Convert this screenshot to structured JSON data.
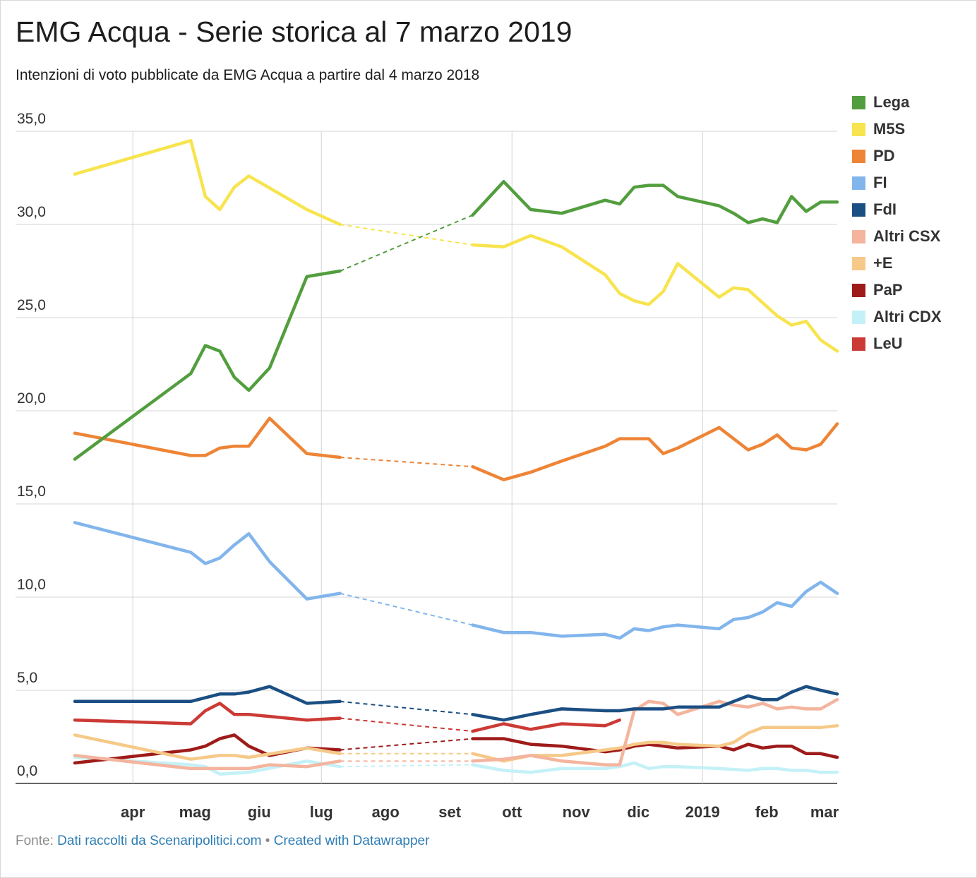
{
  "header": {
    "title": "EMG Acqua - Serie storica al 7 marzo 2019",
    "subtitle": "Intenzioni di voto pubblicate da EMG Acqua a partire dal 4 marzo 2018"
  },
  "footer": {
    "prefix": "Fonte:",
    "source": "Dati raccolti da Scenaripolitici.com",
    "separator": "•",
    "credit": "Created with Datawrapper"
  },
  "chart_data": {
    "type": "line",
    "title": "EMG Acqua - Serie storica al 7 marzo 2019",
    "subtitle": "Intenzioni di voto pubblicate da EMG Acqua a partire dal 4 marzo 2018",
    "xlabel": "",
    "ylabel": "",
    "x_unit": "date",
    "x_range": [
      "2018-03-04",
      "2019-03-07"
    ],
    "ylim": [
      0,
      35
    ],
    "y_ticks": [
      0,
      5,
      10,
      15,
      20,
      25,
      30,
      35
    ],
    "y_tick_labels": [
      "0,0",
      "5,0",
      "10,0",
      "15,0",
      "20,0",
      "25,0",
      "30,0",
      "35,0"
    ],
    "x_ticks": [
      "2018-04-01",
      "2018-05-01",
      "2018-06-01",
      "2018-07-01",
      "2018-08-01",
      "2018-09-01",
      "2018-10-01",
      "2018-11-01",
      "2018-12-01",
      "2019-01-01",
      "2019-02-01",
      "2019-03-01"
    ],
    "x_tick_labels": [
      "apr",
      "mag",
      "giu",
      "lug",
      "ago",
      "set",
      "ott",
      "nov",
      "dic",
      "2019",
      "feb",
      "mar"
    ],
    "x_gridlines": [
      "2018-04-01",
      "2018-07-01",
      "2018-10-01",
      "2019-01-01"
    ],
    "gap": {
      "from": "2018-07-10",
      "to": "2018-09-12",
      "style": "dashed"
    },
    "legend_position": "right",
    "grid": true,
    "series": [
      {
        "name": "Lega",
        "color": "#529e3e",
        "points": [
          [
            "2018-03-04",
            17.4
          ],
          [
            "2018-04-29",
            22.0
          ],
          [
            "2018-05-06",
            23.5
          ],
          [
            "2018-05-13",
            23.2
          ],
          [
            "2018-05-20",
            21.8
          ],
          [
            "2018-05-27",
            21.1
          ],
          [
            "2018-06-06",
            22.3
          ],
          [
            "2018-06-24",
            27.2
          ],
          [
            "2018-07-10",
            27.5
          ],
          [
            "2018-09-12",
            30.5
          ],
          [
            "2018-09-27",
            32.3
          ],
          [
            "2018-10-10",
            30.8
          ],
          [
            "2018-10-25",
            30.6
          ],
          [
            "2018-11-15",
            31.3
          ],
          [
            "2018-11-22",
            31.1
          ],
          [
            "2018-11-29",
            32.0
          ],
          [
            "2018-12-06",
            32.1
          ],
          [
            "2018-12-13",
            32.1
          ],
          [
            "2018-12-20",
            31.5
          ],
          [
            "2019-01-09",
            31.0
          ],
          [
            "2019-01-16",
            30.6
          ],
          [
            "2019-01-23",
            30.1
          ],
          [
            "2019-01-30",
            30.3
          ],
          [
            "2019-02-06",
            30.1
          ],
          [
            "2019-02-13",
            31.5
          ],
          [
            "2019-02-20",
            30.7
          ],
          [
            "2019-02-27",
            31.2
          ],
          [
            "2019-03-07",
            31.2
          ]
        ]
      },
      {
        "name": "M5S",
        "color": "#f7e44e",
        "points": [
          [
            "2018-03-04",
            32.7
          ],
          [
            "2018-04-29",
            34.5
          ],
          [
            "2018-05-06",
            31.5
          ],
          [
            "2018-05-13",
            30.8
          ],
          [
            "2018-05-20",
            32.0
          ],
          [
            "2018-05-27",
            32.6
          ],
          [
            "2018-06-24",
            30.8
          ],
          [
            "2018-07-10",
            30.0
          ],
          [
            "2018-09-12",
            28.9
          ],
          [
            "2018-09-27",
            28.8
          ],
          [
            "2018-10-10",
            29.4
          ],
          [
            "2018-10-25",
            28.8
          ],
          [
            "2018-11-15",
            27.3
          ],
          [
            "2018-11-22",
            26.3
          ],
          [
            "2018-11-29",
            25.9
          ],
          [
            "2018-12-06",
            25.7
          ],
          [
            "2018-12-13",
            26.4
          ],
          [
            "2018-12-20",
            27.9
          ],
          [
            "2019-01-09",
            26.1
          ],
          [
            "2019-01-16",
            26.6
          ],
          [
            "2019-01-23",
            26.5
          ],
          [
            "2019-01-30",
            25.8
          ],
          [
            "2019-02-06",
            25.1
          ],
          [
            "2019-02-13",
            24.6
          ],
          [
            "2019-02-20",
            24.8
          ],
          [
            "2019-02-27",
            23.8
          ],
          [
            "2019-03-07",
            23.2
          ]
        ]
      },
      {
        "name": "PD",
        "color": "#ee8436",
        "points": [
          [
            "2018-03-04",
            18.8
          ],
          [
            "2018-04-29",
            17.6
          ],
          [
            "2018-05-06",
            17.6
          ],
          [
            "2018-05-13",
            18.0
          ],
          [
            "2018-05-20",
            18.1
          ],
          [
            "2018-05-27",
            18.1
          ],
          [
            "2018-06-06",
            19.6
          ],
          [
            "2018-06-24",
            17.7
          ],
          [
            "2018-07-10",
            17.5
          ],
          [
            "2018-09-12",
            17.0
          ],
          [
            "2018-09-27",
            16.3
          ],
          [
            "2018-10-10",
            16.7
          ],
          [
            "2018-10-25",
            17.3
          ],
          [
            "2018-11-15",
            18.1
          ],
          [
            "2018-11-22",
            18.5
          ],
          [
            "2018-11-29",
            18.5
          ],
          [
            "2018-12-06",
            18.5
          ],
          [
            "2018-12-13",
            17.7
          ],
          [
            "2018-12-20",
            18.0
          ],
          [
            "2019-01-09",
            19.1
          ],
          [
            "2019-01-16",
            18.5
          ],
          [
            "2019-01-23",
            17.9
          ],
          [
            "2019-01-30",
            18.2
          ],
          [
            "2019-02-06",
            18.7
          ],
          [
            "2019-02-13",
            18.0
          ],
          [
            "2019-02-20",
            17.9
          ],
          [
            "2019-02-27",
            18.2
          ],
          [
            "2019-03-07",
            19.3
          ]
        ]
      },
      {
        "name": "FI",
        "color": "#82b5ec",
        "points": [
          [
            "2018-03-04",
            14.0
          ],
          [
            "2018-04-29",
            12.4
          ],
          [
            "2018-05-06",
            11.8
          ],
          [
            "2018-05-13",
            12.1
          ],
          [
            "2018-05-20",
            12.8
          ],
          [
            "2018-05-27",
            13.4
          ],
          [
            "2018-06-06",
            11.9
          ],
          [
            "2018-06-24",
            9.9
          ],
          [
            "2018-07-10",
            10.2
          ],
          [
            "2018-09-12",
            8.5
          ],
          [
            "2018-09-27",
            8.1
          ],
          [
            "2018-10-10",
            8.1
          ],
          [
            "2018-10-25",
            7.9
          ],
          [
            "2018-11-15",
            8.0
          ],
          [
            "2018-11-22",
            7.8
          ],
          [
            "2018-11-29",
            8.3
          ],
          [
            "2018-12-06",
            8.2
          ],
          [
            "2018-12-13",
            8.4
          ],
          [
            "2018-12-20",
            8.5
          ],
          [
            "2019-01-09",
            8.3
          ],
          [
            "2019-01-16",
            8.8
          ],
          [
            "2019-01-23",
            8.9
          ],
          [
            "2019-01-30",
            9.2
          ],
          [
            "2019-02-06",
            9.7
          ],
          [
            "2019-02-13",
            9.5
          ],
          [
            "2019-02-20",
            10.3
          ],
          [
            "2019-02-27",
            10.8
          ],
          [
            "2019-03-07",
            10.2
          ]
        ]
      },
      {
        "name": "FdI",
        "color": "#1b4f83",
        "points": [
          [
            "2018-03-04",
            4.4
          ],
          [
            "2018-04-29",
            4.4
          ],
          [
            "2018-05-13",
            4.8
          ],
          [
            "2018-05-20",
            4.8
          ],
          [
            "2018-05-27",
            4.9
          ],
          [
            "2018-06-06",
            5.2
          ],
          [
            "2018-06-24",
            4.3
          ],
          [
            "2018-07-10",
            4.4
          ],
          [
            "2018-09-12",
            3.7
          ],
          [
            "2018-09-27",
            3.4
          ],
          [
            "2018-10-10",
            3.7
          ],
          [
            "2018-10-25",
            4.0
          ],
          [
            "2018-11-15",
            3.9
          ],
          [
            "2018-11-22",
            3.9
          ],
          [
            "2018-11-29",
            4.0
          ],
          [
            "2018-12-06",
            4.0
          ],
          [
            "2018-12-13",
            4.0
          ],
          [
            "2018-12-20",
            4.1
          ],
          [
            "2019-01-09",
            4.1
          ],
          [
            "2019-01-16",
            4.4
          ],
          [
            "2019-01-23",
            4.7
          ],
          [
            "2019-01-30",
            4.5
          ],
          [
            "2019-02-06",
            4.5
          ],
          [
            "2019-02-13",
            4.9
          ],
          [
            "2019-02-20",
            5.2
          ],
          [
            "2019-02-27",
            5.0
          ],
          [
            "2019-03-07",
            4.8
          ]
        ]
      },
      {
        "name": "Altri CSX",
        "color": "#f4b49e",
        "points": [
          [
            "2018-03-04",
            1.5
          ],
          [
            "2018-04-29",
            0.8
          ],
          [
            "2018-05-27",
            0.8
          ],
          [
            "2018-06-06",
            1.0
          ],
          [
            "2018-06-24",
            0.9
          ],
          [
            "2018-07-10",
            1.2
          ],
          [
            "2018-09-12",
            1.2
          ],
          [
            "2018-09-27",
            1.3
          ],
          [
            "2018-10-10",
            1.5
          ],
          [
            "2018-10-25",
            1.2
          ],
          [
            "2018-11-15",
            1.0
          ],
          [
            "2018-11-22",
            1.0
          ],
          [
            "2018-11-29",
            3.9
          ],
          [
            "2018-12-06",
            4.4
          ],
          [
            "2018-12-13",
            4.3
          ],
          [
            "2018-12-20",
            3.7
          ],
          [
            "2019-01-09",
            4.4
          ],
          [
            "2019-01-16",
            4.2
          ],
          [
            "2019-01-23",
            4.1
          ],
          [
            "2019-01-30",
            4.3
          ],
          [
            "2019-02-06",
            4.0
          ],
          [
            "2019-02-13",
            4.1
          ],
          [
            "2019-02-20",
            4.0
          ],
          [
            "2019-02-27",
            4.0
          ],
          [
            "2019-03-07",
            4.5
          ]
        ]
      },
      {
        "name": "+E",
        "color": "#f6c988",
        "points": [
          [
            "2018-03-04",
            2.6
          ],
          [
            "2018-04-29",
            1.3
          ],
          [
            "2018-05-13",
            1.5
          ],
          [
            "2018-05-20",
            1.5
          ],
          [
            "2018-05-27",
            1.4
          ],
          [
            "2018-06-24",
            1.9
          ],
          [
            "2018-07-10",
            1.6
          ],
          [
            "2018-09-12",
            1.6
          ],
          [
            "2018-09-27",
            1.2
          ],
          [
            "2018-10-10",
            1.5
          ],
          [
            "2018-10-25",
            1.5
          ],
          [
            "2018-11-15",
            1.8
          ],
          [
            "2018-11-22",
            1.9
          ],
          [
            "2018-11-29",
            2.1
          ],
          [
            "2018-12-06",
            2.2
          ],
          [
            "2018-12-13",
            2.2
          ],
          [
            "2018-12-20",
            2.1
          ],
          [
            "2019-01-09",
            2.0
          ],
          [
            "2019-01-16",
            2.2
          ],
          [
            "2019-01-23",
            2.7
          ],
          [
            "2019-01-30",
            3.0
          ],
          [
            "2019-02-06",
            3.0
          ],
          [
            "2019-02-13",
            3.0
          ],
          [
            "2019-02-20",
            3.0
          ],
          [
            "2019-02-27",
            3.0
          ],
          [
            "2019-03-07",
            3.1
          ]
        ]
      },
      {
        "name": "PaP",
        "color": "#9e1b1a",
        "points": [
          [
            "2018-03-04",
            1.1
          ],
          [
            "2018-04-29",
            1.8
          ],
          [
            "2018-05-06",
            2.0
          ],
          [
            "2018-05-13",
            2.4
          ],
          [
            "2018-05-20",
            2.6
          ],
          [
            "2018-05-27",
            2.0
          ],
          [
            "2018-06-06",
            1.5
          ],
          [
            "2018-06-24",
            1.9
          ],
          [
            "2018-07-10",
            1.8
          ],
          [
            "2018-09-12",
            2.4
          ],
          [
            "2018-09-27",
            2.4
          ],
          [
            "2018-10-10",
            2.1
          ],
          [
            "2018-10-25",
            2.0
          ],
          [
            "2018-11-15",
            1.7
          ],
          [
            "2018-11-22",
            1.8
          ],
          [
            "2018-11-29",
            2.0
          ],
          [
            "2018-12-06",
            2.1
          ],
          [
            "2018-12-13",
            2.0
          ],
          [
            "2018-12-20",
            1.9
          ],
          [
            "2019-01-09",
            2.0
          ],
          [
            "2019-01-16",
            1.8
          ],
          [
            "2019-01-23",
            2.1
          ],
          [
            "2019-01-30",
            1.9
          ],
          [
            "2019-02-06",
            2.0
          ],
          [
            "2019-02-13",
            2.0
          ],
          [
            "2019-02-20",
            1.6
          ],
          [
            "2019-02-27",
            1.6
          ],
          [
            "2019-03-07",
            1.4
          ]
        ]
      },
      {
        "name": "Altri CDX",
        "color": "#c4f1f7",
        "points": [
          [
            "2018-03-04",
            1.4
          ],
          [
            "2018-04-29",
            1.0
          ],
          [
            "2018-05-06",
            0.9
          ],
          [
            "2018-05-13",
            0.5
          ],
          [
            "2018-05-27",
            0.6
          ],
          [
            "2018-06-24",
            1.2
          ],
          [
            "2018-07-10",
            0.9
          ],
          [
            "2018-09-12",
            1.0
          ],
          [
            "2018-09-27",
            0.7
          ],
          [
            "2018-10-10",
            0.6
          ],
          [
            "2018-10-25",
            0.8
          ],
          [
            "2018-11-15",
            0.8
          ],
          [
            "2018-11-22",
            0.9
          ],
          [
            "2018-11-29",
            1.1
          ],
          [
            "2018-12-06",
            0.8
          ],
          [
            "2018-12-13",
            0.9
          ],
          [
            "2018-12-20",
            0.9
          ],
          [
            "2019-01-09",
            0.8
          ],
          [
            "2019-01-23",
            0.7
          ],
          [
            "2019-01-30",
            0.8
          ],
          [
            "2019-02-06",
            0.8
          ],
          [
            "2019-02-13",
            0.7
          ],
          [
            "2019-02-20",
            0.7
          ],
          [
            "2019-02-27",
            0.6
          ],
          [
            "2019-03-07",
            0.6
          ]
        ]
      },
      {
        "name": "LeU",
        "color": "#cc3a35",
        "points": [
          [
            "2018-03-04",
            3.4
          ],
          [
            "2018-04-29",
            3.2
          ],
          [
            "2018-05-06",
            3.9
          ],
          [
            "2018-05-13",
            4.3
          ],
          [
            "2018-05-20",
            3.7
          ],
          [
            "2018-05-27",
            3.7
          ],
          [
            "2018-06-24",
            3.4
          ],
          [
            "2018-07-10",
            3.5
          ],
          [
            "2018-09-12",
            2.8
          ],
          [
            "2018-09-27",
            3.2
          ],
          [
            "2018-10-10",
            2.9
          ],
          [
            "2018-10-25",
            3.2
          ],
          [
            "2018-11-15",
            3.1
          ],
          [
            "2018-11-22",
            3.4
          ]
        ]
      }
    ]
  }
}
